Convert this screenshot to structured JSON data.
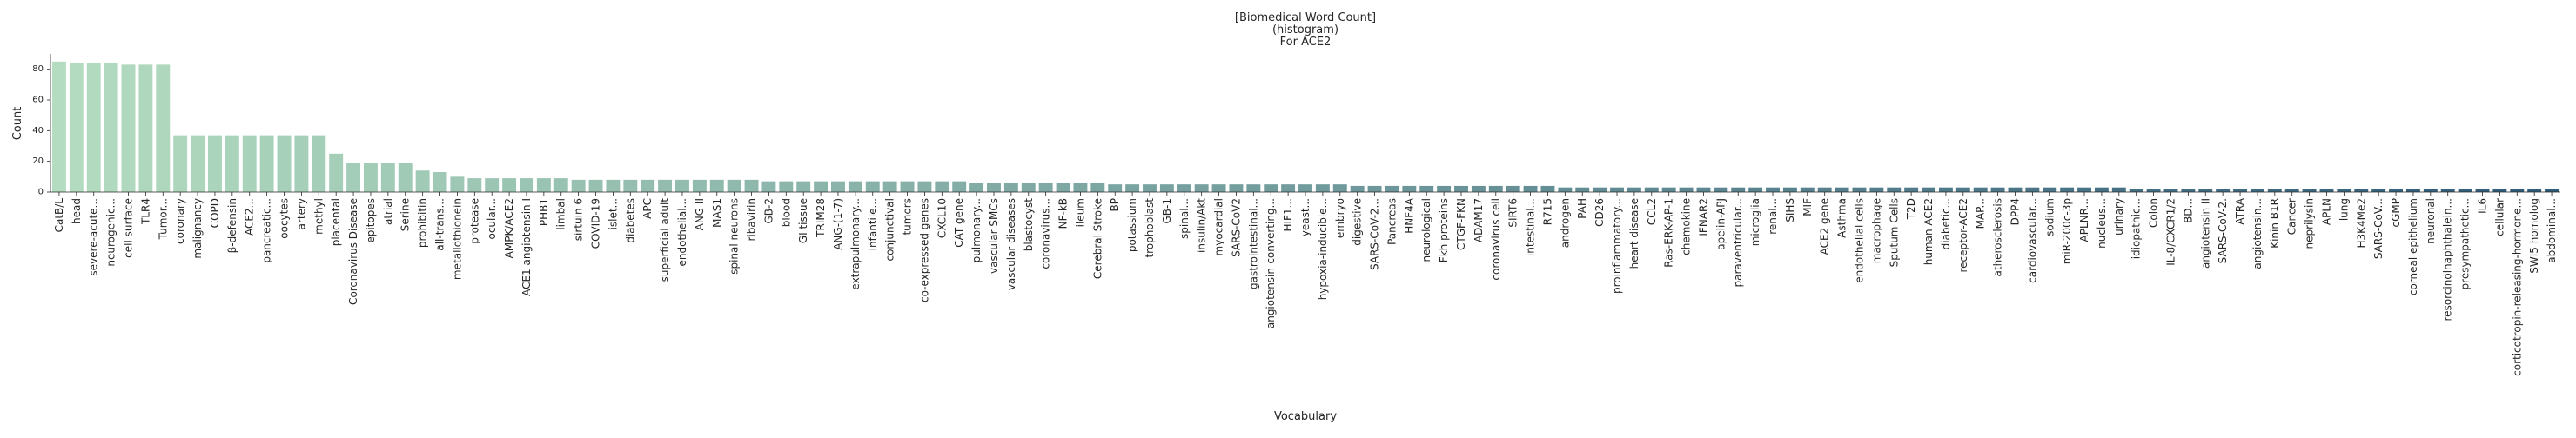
{
  "chart_data": {
    "type": "bar",
    "title_lines": [
      "[Biomedical Word Count]",
      "(histogram)",
      "For ACE2"
    ],
    "xlabel": "Vocabulary",
    "ylabel": "Count",
    "ylim": [
      0,
      90
    ],
    "yticks": [
      0,
      20,
      40,
      60,
      80
    ],
    "grid": false,
    "palette": {
      "start": "#b3dcc0",
      "end": "#2f5a78"
    },
    "categories": [
      "CatB/L",
      "head",
      "severe-acute...",
      "neurogenic...",
      "cell surface",
      "TLR4",
      "Tumor...",
      "coronary",
      "malignancy",
      "COPD",
      "β-defensin",
      "ACE2...",
      "pancreatic...",
      "oocytes",
      "artery",
      "methyl",
      "placental",
      "Coronavirus Disease",
      "epitopes",
      "atrial",
      "Serine",
      "prohibitin",
      "all-trans...",
      "metallothionein",
      "protease",
      "ocular...",
      "AMPK/ACE2",
      "ACE1 angiotensin I",
      "PHB1",
      "limbal",
      "sirtuin 6",
      "COVID-19",
      "islet...",
      "diabetes",
      "APC",
      "superficial adult",
      "endothelial...",
      "ANG II",
      "MAS1",
      "spinal neurons",
      "ribavirin",
      "GB-2",
      "blood",
      "GI tissue",
      "TRIM28",
      "ANG-(1-7)",
      "extrapulmonary...",
      "infantile...",
      "conjunctival",
      "tumors",
      "co-expressed genes",
      "CXCL10",
      "CAT gene",
      "pulmonary...",
      "vascular SMCs",
      "vascular diseases",
      "blastocyst",
      "coronavirus...",
      "NF-kB",
      "ileum",
      "Cerebral Stroke",
      "BP",
      "potassium",
      "trophoblast",
      "GB-1",
      "spinal...",
      "insulin/Akt",
      "myocardial",
      "SARS-CoV2",
      "gastrointestinal...",
      "angiotensin-converting...",
      "HIF1...",
      "yeast...",
      "hypoxia-inducible...",
      "embryo",
      "digestive",
      "SARS-CoV-2...",
      "Pancreas",
      "HNF4A",
      "neurological",
      "Fkh proteins",
      "CTGF-FKN",
      "ADAM17",
      "coronavirus cell",
      "SIRT6",
      "intestinal...",
      "R715",
      "androgen",
      "PAH",
      "CD26",
      "proinflammatory...",
      "heart disease",
      "CCL2",
      "Ras-ERK-AP-1",
      "chemokine",
      "IFNAR2",
      "apelin-APJ",
      "paraventricular...",
      "microglia",
      "renal...",
      "SIHS",
      "MIF",
      "ACE2 gene",
      "Asthma",
      "endothelial cells",
      "macrophage",
      "Sputum Cells",
      "T2D",
      "human ACE2",
      "diabetic...",
      "receptor-ACE2",
      "MAP...",
      "atherosclerosis",
      "DPP4",
      "cardiovascular...",
      "sodium",
      "miR-200c-3p",
      "APLNR...",
      "nucleus...",
      "urinary",
      "idiopathic...",
      "Colon",
      "IL-8/CXCR1/2",
      "BD...",
      "angiotensin II",
      "SARS-CoV-2.",
      "ATRA",
      "angiotensin...",
      "Kinin B1R",
      "Cancer",
      "neprilysin",
      "APLN",
      "lung",
      "H3K4Me2",
      "SARS-CoV...",
      "cGMP",
      "corneal epithelium",
      "neuronal",
      "resorcinolnaphthalein...",
      "presympathetic...",
      "IL6",
      "cellular",
      "corticotropin-releasing-hormone...",
      "SWI5 homolog",
      "abdominal..."
    ],
    "values": [
      85,
      84,
      84,
      84,
      83,
      83,
      83,
      37,
      37,
      37,
      37,
      37,
      37,
      37,
      37,
      37,
      25,
      19,
      19,
      19,
      19,
      14,
      13,
      10,
      9,
      9,
      9,
      9,
      9,
      9,
      8,
      8,
      8,
      8,
      8,
      8,
      8,
      8,
      8,
      8,
      8,
      7,
      7,
      7,
      7,
      7,
      7,
      7,
      7,
      7,
      7,
      7,
      7,
      6,
      6,
      6,
      6,
      6,
      6,
      6,
      6,
      5,
      5,
      5,
      5,
      5,
      5,
      5,
      5,
      5,
      5,
      5,
      5,
      5,
      5,
      4,
      4,
      4,
      4,
      4,
      4,
      4,
      4,
      4,
      4,
      4,
      4,
      3,
      3,
      3,
      3,
      3,
      3,
      3,
      3,
      3,
      3,
      3,
      3,
      3,
      3,
      3,
      3,
      3,
      3,
      3,
      3,
      3,
      3,
      3,
      3,
      3,
      3,
      3,
      3,
      3,
      3,
      3,
      3,
      3,
      2,
      2,
      2,
      2,
      2,
      2,
      2,
      2,
      2,
      2,
      2,
      2,
      2,
      2,
      2,
      2,
      2,
      2,
      2,
      2,
      2,
      2,
      2,
      2,
      2
    ]
  }
}
